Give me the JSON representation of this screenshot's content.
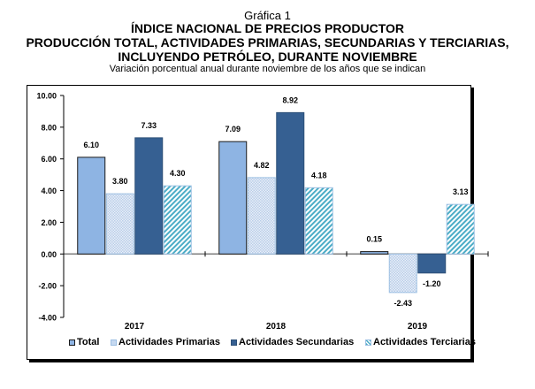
{
  "header": {
    "figure_label": "Gráfica 1",
    "title_line1": "ÍNDICE NACIONAL DE PRECIOS PRODUCTOR",
    "title_line2": "PRODUCCIÓN TOTAL, ACTIVIDADES PRIMARIAS, SECUNDARIAS Y TERCIARIAS,",
    "title_line3": "INCLUYENDO PETRÓLEO, DURANTE NOVIEMBRE",
    "subtitle": "Variación porcentual anual durante noviembre de los años que se indican"
  },
  "chart_data": {
    "type": "bar",
    "title": "ÍNDICE NACIONAL DE PRECIOS PRODUCTOR — PRODUCCIÓN TOTAL, ACTIVIDADES PRIMARIAS, SECUNDARIAS Y TERCIARIAS, INCLUYENDO PETRÓLEO, DURANTE NOVIEMBRE",
    "subtitle": "Variación porcentual anual durante noviembre de los años que se indican",
    "xlabel": "",
    "ylabel": "",
    "categories": [
      "2017",
      "2018",
      "2019"
    ],
    "ylim": [
      -4,
      10
    ],
    "yticks": [
      10,
      8,
      6,
      4,
      2,
      0,
      -2,
      -4
    ],
    "ytick_labels": [
      "10.00",
      "8.00",
      "6.00",
      "4.00",
      "2.00",
      "0.00",
      "-2.00",
      "-4.00"
    ],
    "grid": false,
    "legend_position": "bottom",
    "series": [
      {
        "name": "Total",
        "values": [
          6.1,
          7.09,
          0.15
        ],
        "labels": [
          "6.10",
          "7.09",
          "0.15"
        ],
        "color": "#8eb4e3",
        "pattern": "solid"
      },
      {
        "name": "Actividades Primarias",
        "values": [
          3.8,
          4.82,
          -2.43
        ],
        "labels": [
          "3.80",
          "4.82",
          "-2.43"
        ],
        "color": "#c6d9f1",
        "pattern": "dots"
      },
      {
        "name": "Actividades Secundarias",
        "values": [
          7.33,
          8.92,
          -1.2
        ],
        "labels": [
          "7.33",
          "8.92",
          "-1.20"
        ],
        "color": "#366092",
        "pattern": "solid"
      },
      {
        "name": "Actividades Terciarias",
        "values": [
          4.3,
          4.18,
          3.13
        ],
        "labels": [
          "4.30",
          "4.18",
          "3.13"
        ],
        "color": "#4bacc6",
        "pattern": "diagonal"
      }
    ]
  }
}
